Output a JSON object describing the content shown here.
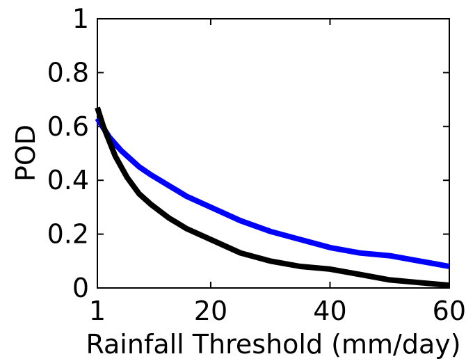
{
  "chart_data": {
    "type": "line",
    "xlabel": "Rainfall Threshold (mm/day)",
    "ylabel": "POD",
    "xlim": [
      1,
      60
    ],
    "ylim": [
      0,
      1
    ],
    "x_ticks": [
      1,
      20,
      40,
      60
    ],
    "x_tick_labels": [
      "1",
      "20",
      "40",
      "60"
    ],
    "y_ticks": [
      0,
      0.2,
      0.4,
      0.6,
      0.8,
      1
    ],
    "y_tick_labels": [
      "0",
      "0.2",
      "0.4",
      "0.6",
      "0.8",
      "1"
    ],
    "grid": false,
    "legend": "none",
    "series": [
      {
        "color": "#0000ff",
        "x": [
          1,
          3,
          5,
          8,
          10,
          13,
          16,
          20,
          25,
          30,
          35,
          40,
          45,
          50,
          55,
          60
        ],
        "y": [
          0.63,
          0.56,
          0.51,
          0.45,
          0.42,
          0.38,
          0.34,
          0.3,
          0.25,
          0.21,
          0.18,
          0.15,
          0.13,
          0.12,
          0.1,
          0.08
        ]
      },
      {
        "color": "#000000",
        "x": [
          1,
          2,
          4,
          6,
          8,
          10,
          13,
          16,
          20,
          25,
          30,
          35,
          40,
          45,
          50,
          55,
          60
        ],
        "y": [
          0.67,
          0.6,
          0.49,
          0.41,
          0.35,
          0.31,
          0.26,
          0.22,
          0.18,
          0.13,
          0.1,
          0.08,
          0.07,
          0.05,
          0.03,
          0.02,
          0.01
        ]
      }
    ]
  }
}
